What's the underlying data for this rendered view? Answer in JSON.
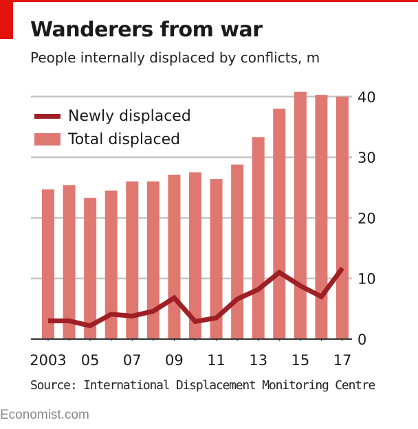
{
  "header": {
    "title": "Wanderers from war",
    "subtitle": "People internally displaced by conflicts, m"
  },
  "colors": {
    "accent_red": "#e3120b",
    "bar": "#e07872",
    "line": "#9e1f24",
    "grid": "#c4c4c4",
    "axis": "#333333"
  },
  "legend": [
    {
      "label": "Newly displaced",
      "type": "line"
    },
    {
      "label": "Total displaced",
      "type": "bar"
    }
  ],
  "footer": {
    "source": "Source: International Displacement Monitoring Centre",
    "brand": "Economist.com"
  },
  "chart_data": {
    "type": "bar",
    "title": "Wanderers from war",
    "subtitle": "People internally displaced by conflicts, m",
    "xlabel": "",
    "ylabel": "",
    "categories": [
      "2003",
      "2004",
      "2005",
      "2006",
      "2007",
      "2008",
      "2009",
      "2010",
      "2011",
      "2012",
      "2013",
      "2014",
      "2015",
      "2016",
      "2017"
    ],
    "x_tick_labels": [
      {
        "index": 0,
        "label": "2003"
      },
      {
        "index": 2,
        "label": "05"
      },
      {
        "index": 4,
        "label": "07"
      },
      {
        "index": 6,
        "label": "09"
      },
      {
        "index": 8,
        "label": "11"
      },
      {
        "index": 10,
        "label": "13"
      },
      {
        "index": 12,
        "label": "15"
      },
      {
        "index": 14,
        "label": "17"
      }
    ],
    "y_ticks": [
      0,
      10,
      20,
      30,
      40
    ],
    "y_axis_side": "right",
    "ylim": [
      0,
      42
    ],
    "grid": true,
    "legend_position": "top-left",
    "series": [
      {
        "name": "Total displaced",
        "type": "bar",
        "values": [
          24.7,
          25.4,
          23.3,
          24.5,
          26.0,
          26.0,
          27.1,
          27.5,
          26.4,
          28.8,
          33.3,
          38.0,
          40.8,
          40.3,
          40.0
        ]
      },
      {
        "name": "Newly displaced",
        "type": "line",
        "values": [
          3.0,
          3.0,
          2.2,
          4.1,
          3.8,
          4.6,
          6.8,
          2.9,
          3.5,
          6.6,
          8.2,
          11.0,
          8.8,
          7.0,
          11.7
        ]
      }
    ]
  }
}
